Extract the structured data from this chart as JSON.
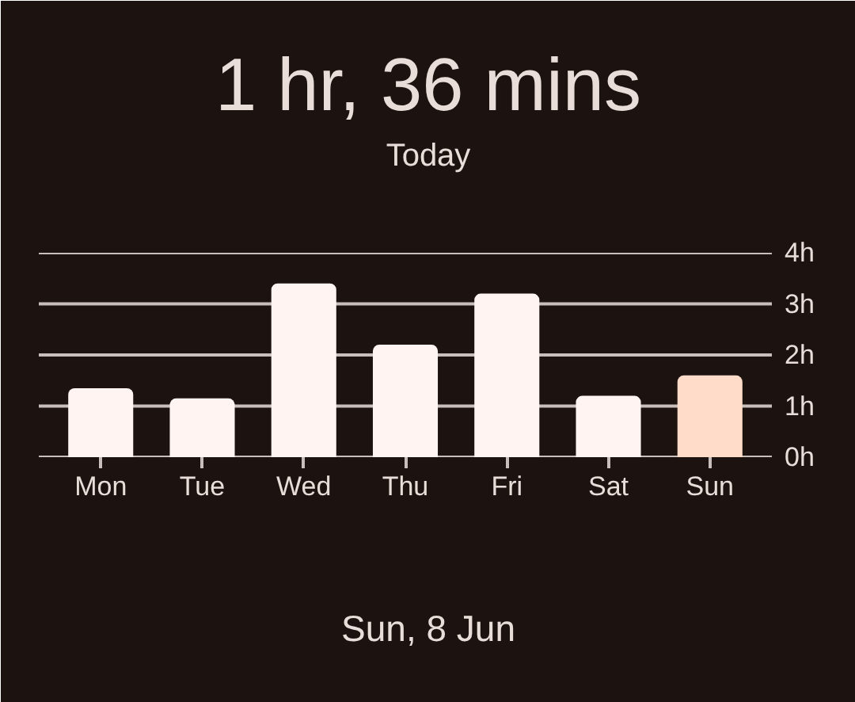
{
  "chart_data": {
    "type": "bar",
    "title": "1 hr, 36 mins",
    "subtitle": "Today",
    "categories": [
      "Mon",
      "Tue",
      "Wed",
      "Thu",
      "Fri",
      "Sat",
      "Sun"
    ],
    "values": [
      1.35,
      1.15,
      3.4,
      2.2,
      3.2,
      1.2,
      1.6
    ],
    "colors": [
      "#fff4f1",
      "#fff4f1",
      "#fff4f1",
      "#fff4f1",
      "#fff4f1",
      "#fff4f1",
      "#ffdcca"
    ],
    "ylim": [
      0,
      4
    ],
    "yticks": [
      {
        "value": 0,
        "label": "0h"
      },
      {
        "value": 1,
        "label": "1h"
      },
      {
        "value": 2,
        "label": "2h"
      },
      {
        "value": 3,
        "label": "3h"
      },
      {
        "value": 4,
        "label": "4h"
      }
    ],
    "grid": "y",
    "annotations": [
      "Sun, 8 Jun"
    ]
  }
}
